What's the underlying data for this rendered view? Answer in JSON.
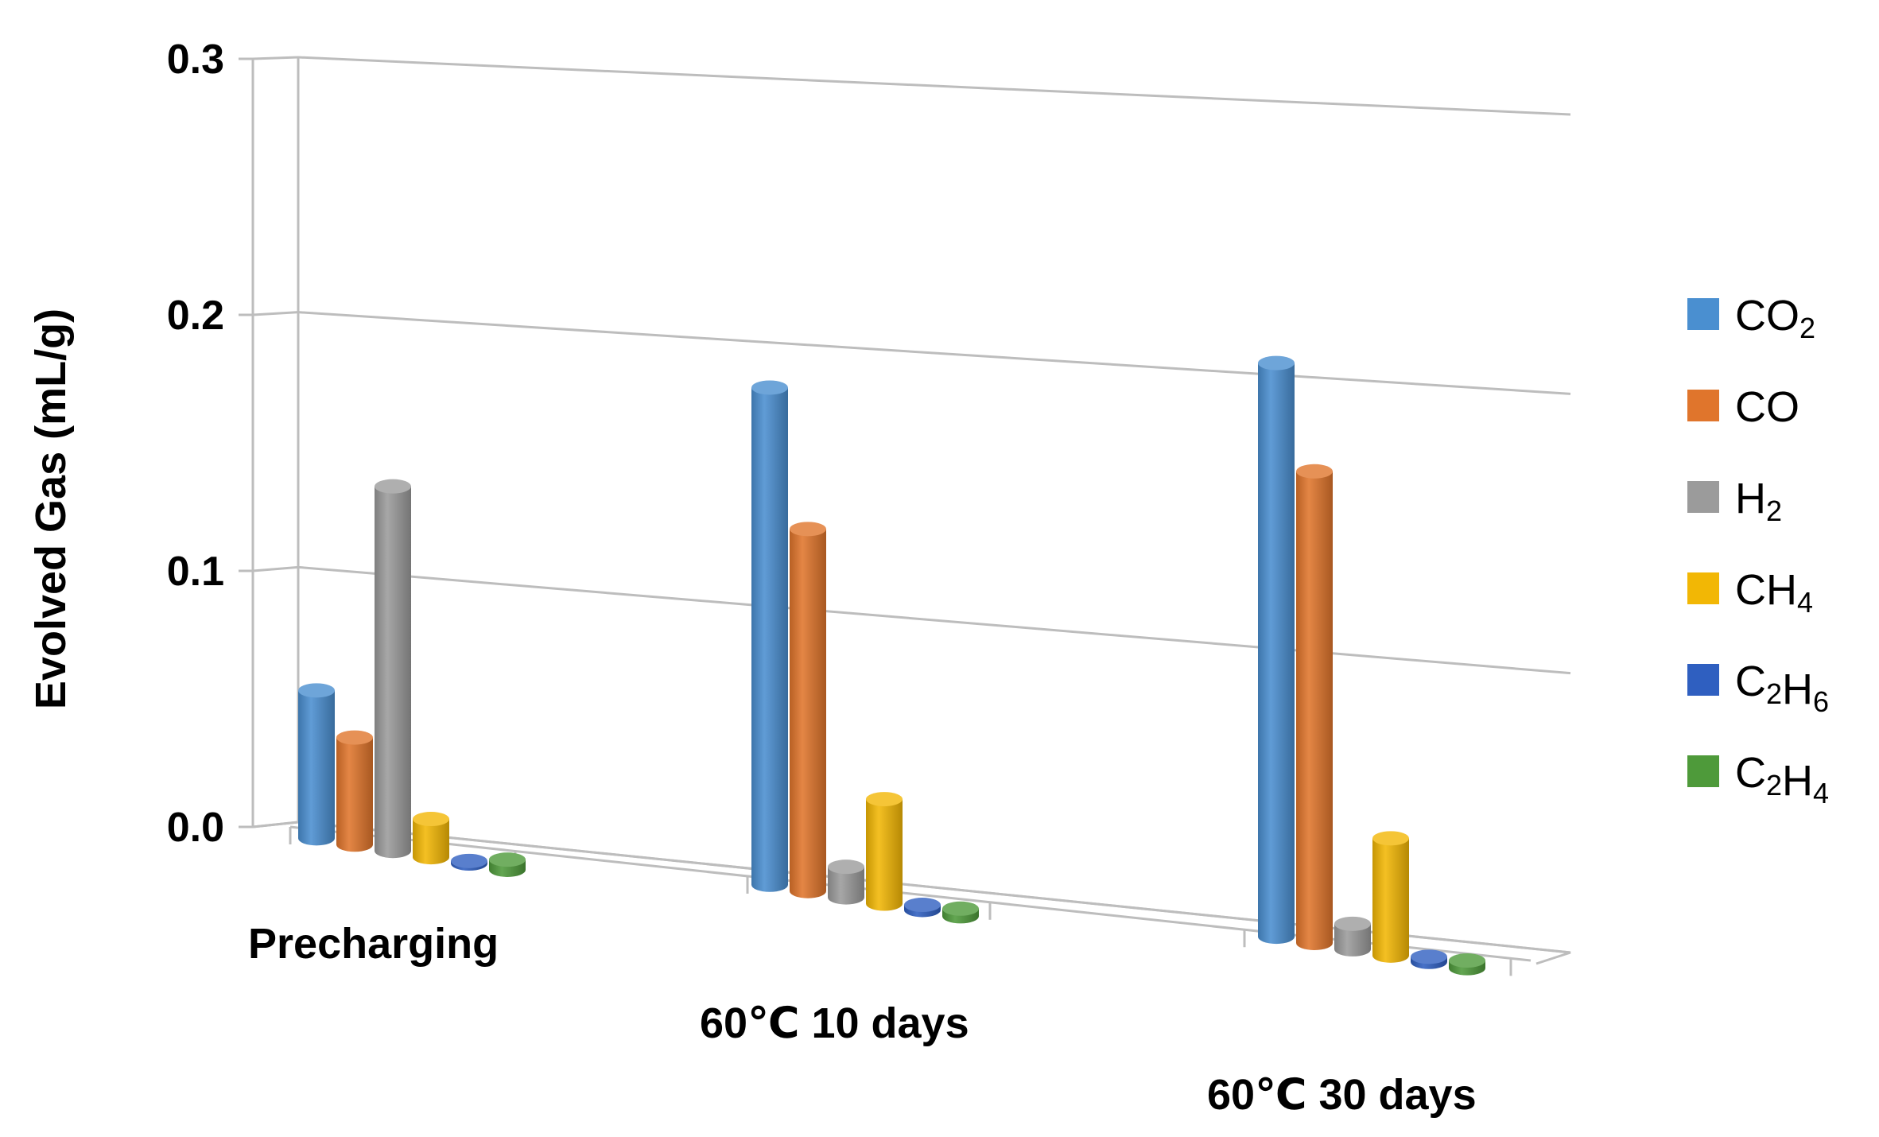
{
  "chart_data": {
    "type": "bar",
    "style": "3d-clustered-cylinder",
    "title": "",
    "xlabel": "",
    "ylabel": "Evolved Gas (mL/g)",
    "ylim": [
      0,
      0.3
    ],
    "yticks": [
      "0.0",
      "0.1",
      "0.2",
      "0.3"
    ],
    "grid": true,
    "legend_position": "right",
    "categories": [
      "Precharging",
      "60℃ 10 days",
      "60℃ 30 days"
    ],
    "series": [
      {
        "name": "CO2",
        "label_main": "CO",
        "label_sub": "2",
        "color": "#4a8fd0",
        "values": [
          0.058,
          0.195,
          0.225
        ]
      },
      {
        "name": "CO",
        "label_main": "CO",
        "label_sub": "",
        "color": "#e0752c",
        "values": [
          0.042,
          0.142,
          0.185
        ]
      },
      {
        "name": "H2",
        "label_main": "H",
        "label_sub": "2",
        "color": "#9b9b9b",
        "values": [
          0.143,
          0.012,
          0.01
        ]
      },
      {
        "name": "CH4",
        "label_main": "CH",
        "label_sub": "4",
        "color": "#f2b705",
        "values": [
          0.015,
          0.041,
          0.046
        ]
      },
      {
        "name": "C2H6",
        "label_main": "C",
        "label_sub": "2",
        "label_main2": "H",
        "label_sub2": "6",
        "color": "#2f5fc0",
        "values": [
          0.001,
          0.002,
          0.002
        ]
      },
      {
        "name": "C2H4",
        "label_main": "C",
        "label_sub": "2",
        "label_main2": "H",
        "label_sub2": "4",
        "color": "#4e9a3a",
        "values": [
          0.004,
          0.003,
          0.003
        ]
      }
    ]
  }
}
